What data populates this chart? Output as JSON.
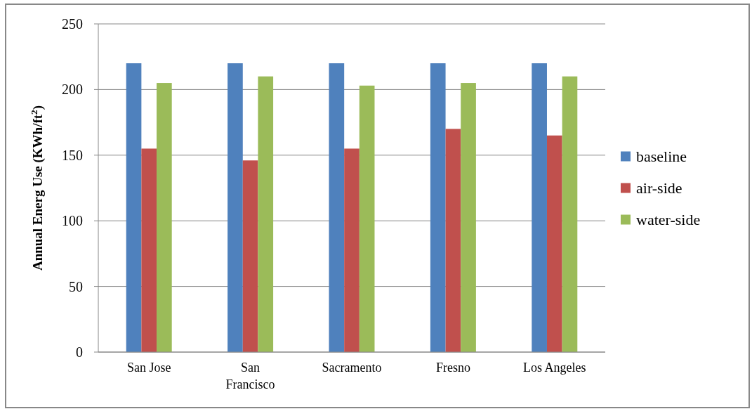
{
  "chart_data": {
    "type": "bar",
    "categories": [
      "San Jose",
      "San Francisco",
      "Sacramento",
      "Fresno",
      "Los Angeles"
    ],
    "series": [
      {
        "name": "baseline",
        "color": "#4f81bd",
        "values": [
          220,
          220,
          220,
          220,
          220
        ]
      },
      {
        "name": "air-side",
        "color": "#c0504d",
        "values": [
          155,
          146,
          155,
          170,
          165
        ]
      },
      {
        "name": "water-side",
        "color": "#9bbb59",
        "values": [
          205,
          210,
          203,
          205,
          210
        ]
      }
    ],
    "ylabel": "Annual Energ Use (KWh/ft$^{2}$)",
    "ylim": [
      0,
      250
    ],
    "yticks": [
      0,
      50,
      100,
      150,
      200,
      250
    ],
    "grid": "y",
    "legend": "right"
  }
}
